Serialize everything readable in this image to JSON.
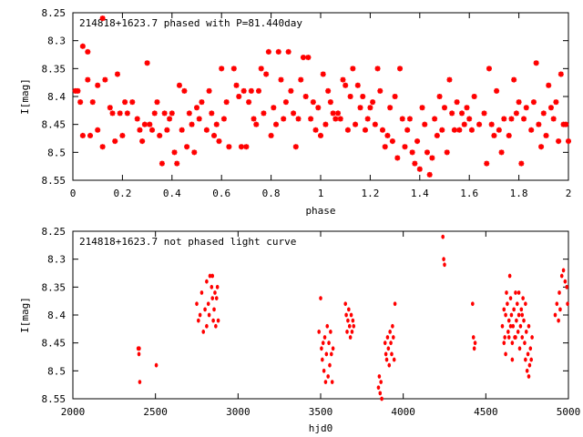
{
  "chart_data": [
    {
      "type": "scatter",
      "title": "214818+1623.7 phased with P=81.440day",
      "xlabel": "phase",
      "ylabel": "I[mag]",
      "xlim": [
        0,
        2
      ],
      "ylim": [
        8.25,
        8.55
      ],
      "y_inverted": true,
      "xticks": [
        0,
        0.2,
        0.4,
        0.6,
        0.8,
        1,
        1.2,
        1.4,
        1.6,
        1.8,
        2
      ],
      "xtick_labels": [
        "0",
        "0.2",
        "0.4",
        "0.6",
        "0.8",
        "1",
        "1.2",
        "1.4",
        "1.6",
        "1.8",
        "2"
      ],
      "yticks": [
        8.25,
        8.3,
        8.35,
        8.4,
        8.45,
        8.5,
        8.55
      ],
      "ytick_labels": [
        "8.25",
        "8.3",
        "8.35",
        "8.4",
        "8.45",
        "8.5",
        "8.55"
      ],
      "marker_color": "#ff0000",
      "grid": false,
      "points": [
        [
          0.01,
          8.39
        ],
        [
          0.02,
          8.39
        ],
        [
          0.03,
          8.41
        ],
        [
          0.04,
          8.31
        ],
        [
          0.04,
          8.47
        ],
        [
          0.06,
          8.32
        ],
        [
          0.06,
          8.37
        ],
        [
          0.07,
          8.47
        ],
        [
          0.08,
          8.41
        ],
        [
          0.1,
          8.46
        ],
        [
          0.1,
          8.38
        ],
        [
          0.12,
          8.26
        ],
        [
          0.12,
          8.49
        ],
        [
          0.13,
          8.37
        ],
        [
          0.15,
          8.42
        ],
        [
          0.16,
          8.43
        ],
        [
          0.17,
          8.48
        ],
        [
          0.18,
          8.36
        ],
        [
          0.19,
          8.43
        ],
        [
          0.2,
          8.47
        ],
        [
          0.21,
          8.41
        ],
        [
          0.22,
          8.43
        ],
        [
          0.24,
          8.41
        ],
        [
          0.26,
          8.44
        ],
        [
          0.27,
          8.46
        ],
        [
          0.28,
          8.48
        ],
        [
          0.29,
          8.45
        ],
        [
          0.3,
          8.34
        ],
        [
          0.31,
          8.45
        ],
        [
          0.32,
          8.46
        ],
        [
          0.33,
          8.43
        ],
        [
          0.34,
          8.41
        ],
        [
          0.35,
          8.47
        ],
        [
          0.36,
          8.52
        ],
        [
          0.37,
          8.43
        ],
        [
          0.38,
          8.46
        ],
        [
          0.39,
          8.44
        ],
        [
          0.4,
          8.43
        ],
        [
          0.41,
          8.5
        ],
        [
          0.42,
          8.52
        ],
        [
          0.43,
          8.38
        ],
        [
          0.44,
          8.46
        ],
        [
          0.45,
          8.39
        ],
        [
          0.46,
          8.49
        ],
        [
          0.47,
          8.43
        ],
        [
          0.48,
          8.45
        ],
        [
          0.49,
          8.5
        ],
        [
          0.5,
          8.42
        ],
        [
          0.51,
          8.44
        ],
        [
          0.52,
          8.41
        ],
        [
          0.54,
          8.46
        ],
        [
          0.55,
          8.39
        ],
        [
          0.56,
          8.43
        ],
        [
          0.57,
          8.47
        ],
        [
          0.58,
          8.45
        ],
        [
          0.59,
          8.48
        ],
        [
          0.6,
          8.35
        ],
        [
          0.61,
          8.44
        ],
        [
          0.62,
          8.41
        ],
        [
          0.63,
          8.49
        ],
        [
          0.65,
          8.35
        ],
        [
          0.66,
          8.38
        ],
        [
          0.67,
          8.4
        ],
        [
          0.68,
          8.49
        ],
        [
          0.69,
          8.39
        ],
        [
          0.7,
          8.49
        ],
        [
          0.71,
          8.41
        ],
        [
          0.72,
          8.39
        ],
        [
          0.73,
          8.44
        ],
        [
          0.74,
          8.45
        ],
        [
          0.75,
          8.39
        ],
        [
          0.76,
          8.35
        ],
        [
          0.77,
          8.43
        ],
        [
          0.78,
          8.36
        ],
        [
          0.79,
          8.32
        ],
        [
          0.8,
          8.47
        ],
        [
          0.81,
          8.42
        ],
        [
          0.82,
          8.45
        ],
        [
          0.83,
          8.32
        ],
        [
          0.84,
          8.37
        ],
        [
          0.85,
          8.44
        ],
        [
          0.86,
          8.41
        ],
        [
          0.87,
          8.32
        ],
        [
          0.88,
          8.39
        ],
        [
          0.89,
          8.43
        ],
        [
          0.9,
          8.49
        ],
        [
          0.91,
          8.44
        ],
        [
          0.92,
          8.37
        ],
        [
          0.93,
          8.33
        ],
        [
          0.94,
          8.4
        ],
        [
          0.95,
          8.33
        ],
        [
          0.96,
          8.44
        ],
        [
          0.97,
          8.41
        ],
        [
          0.98,
          8.46
        ],
        [
          0.99,
          8.42
        ],
        [
          1.0,
          8.47
        ],
        [
          1.01,
          8.36
        ],
        [
          1.02,
          8.45
        ],
        [
          1.03,
          8.39
        ],
        [
          1.04,
          8.41
        ],
        [
          1.05,
          8.43
        ],
        [
          1.06,
          8.44
        ],
        [
          1.07,
          8.43
        ],
        [
          1.08,
          8.44
        ],
        [
          1.09,
          8.37
        ],
        [
          1.1,
          8.38
        ],
        [
          1.11,
          8.46
        ],
        [
          1.12,
          8.4
        ],
        [
          1.13,
          8.35
        ],
        [
          1.14,
          8.45
        ],
        [
          1.15,
          8.38
        ],
        [
          1.16,
          8.42
        ],
        [
          1.17,
          8.4
        ],
        [
          1.18,
          8.46
        ],
        [
          1.19,
          8.44
        ],
        [
          1.2,
          8.42
        ],
        [
          1.21,
          8.41
        ],
        [
          1.22,
          8.45
        ],
        [
          1.23,
          8.35
        ],
        [
          1.24,
          8.39
        ],
        [
          1.25,
          8.46
        ],
        [
          1.26,
          8.49
        ],
        [
          1.27,
          8.47
        ],
        [
          1.28,
          8.42
        ],
        [
          1.29,
          8.48
        ],
        [
          1.3,
          8.4
        ],
        [
          1.31,
          8.51
        ],
        [
          1.32,
          8.35
        ],
        [
          1.33,
          8.44
        ],
        [
          1.34,
          8.49
        ],
        [
          1.35,
          8.46
        ],
        [
          1.36,
          8.44
        ],
        [
          1.37,
          8.5
        ],
        [
          1.38,
          8.52
        ],
        [
          1.39,
          8.48
        ],
        [
          1.4,
          8.53
        ],
        [
          1.41,
          8.42
        ],
        [
          1.42,
          8.45
        ],
        [
          1.43,
          8.5
        ],
        [
          1.44,
          8.54
        ],
        [
          1.45,
          8.51
        ],
        [
          1.46,
          8.44
        ],
        [
          1.47,
          8.47
        ],
        [
          1.48,
          8.4
        ],
        [
          1.49,
          8.46
        ],
        [
          1.5,
          8.42
        ],
        [
          1.51,
          8.5
        ],
        [
          1.52,
          8.37
        ],
        [
          1.53,
          8.43
        ],
        [
          1.54,
          8.46
        ],
        [
          1.55,
          8.41
        ],
        [
          1.56,
          8.46
        ],
        [
          1.57,
          8.43
        ],
        [
          1.58,
          8.45
        ],
        [
          1.59,
          8.42
        ],
        [
          1.6,
          8.44
        ],
        [
          1.61,
          8.46
        ],
        [
          1.62,
          8.4
        ],
        [
          1.64,
          8.45
        ],
        [
          1.66,
          8.43
        ],
        [
          1.67,
          8.52
        ],
        [
          1.68,
          8.35
        ],
        [
          1.69,
          8.45
        ],
        [
          1.7,
          8.47
        ],
        [
          1.71,
          8.39
        ],
        [
          1.72,
          8.46
        ],
        [
          1.73,
          8.5
        ],
        [
          1.74,
          8.44
        ],
        [
          1.76,
          8.47
        ],
        [
          1.77,
          8.44
        ],
        [
          1.78,
          8.37
        ],
        [
          1.79,
          8.43
        ],
        [
          1.8,
          8.41
        ],
        [
          1.81,
          8.52
        ],
        [
          1.82,
          8.44
        ],
        [
          1.83,
          8.42
        ],
        [
          1.85,
          8.46
        ],
        [
          1.86,
          8.41
        ],
        [
          1.87,
          8.34
        ],
        [
          1.88,
          8.45
        ],
        [
          1.89,
          8.49
        ],
        [
          1.9,
          8.43
        ],
        [
          1.91,
          8.47
        ],
        [
          1.92,
          8.38
        ],
        [
          1.93,
          8.42
        ],
        [
          1.94,
          8.44
        ],
        [
          1.95,
          8.41
        ],
        [
          1.96,
          8.48
        ],
        [
          1.97,
          8.36
        ],
        [
          1.98,
          8.45
        ],
        [
          1.99,
          8.45
        ],
        [
          2.0,
          8.48
        ]
      ]
    },
    {
      "type": "scatter",
      "title": "214818+1623.7 not phased light curve",
      "xlabel": "hjd0",
      "ylabel": "I[mag]",
      "xlim": [
        2000,
        5000
      ],
      "ylim": [
        8.25,
        8.55
      ],
      "y_inverted": true,
      "xticks": [
        2000,
        2500,
        3000,
        3500,
        4000,
        4500,
        5000
      ],
      "xtick_labels": [
        "2000",
        "2500",
        "3000",
        "3500",
        "4000",
        "4500",
        "5000"
      ],
      "yticks": [
        8.25,
        8.3,
        8.35,
        8.4,
        8.45,
        8.5,
        8.55
      ],
      "ytick_labels": [
        "8.25",
        "8.3",
        "8.35",
        "8.4",
        "8.45",
        "8.5",
        "8.55"
      ],
      "marker_color": "#ff0000",
      "grid": false,
      "points": [
        [
          2395,
          8.46
        ],
        [
          2400,
          8.47
        ],
        [
          2402,
          8.46
        ],
        [
          2405,
          8.52
        ],
        [
          2505,
          8.49
        ],
        [
          2750,
          8.38
        ],
        [
          2760,
          8.41
        ],
        [
          2770,
          8.4
        ],
        [
          2780,
          8.36
        ],
        [
          2790,
          8.43
        ],
        [
          2800,
          8.39
        ],
        [
          2810,
          8.42
        ],
        [
          2820,
          8.38
        ],
        [
          2825,
          8.4
        ],
        [
          2830,
          8.33
        ],
        [
          2840,
          8.35
        ],
        [
          2845,
          8.37
        ],
        [
          2850,
          8.41
        ],
        [
          2855,
          8.39
        ],
        [
          2860,
          8.36
        ],
        [
          2865,
          8.42
        ],
        [
          2870,
          8.37
        ],
        [
          2875,
          8.35
        ],
        [
          2880,
          8.41
        ],
        [
          2845,
          8.33
        ],
        [
          2810,
          8.34
        ],
        [
          3490,
          8.43
        ],
        [
          3500,
          8.37
        ],
        [
          3505,
          8.46
        ],
        [
          3510,
          8.48
        ],
        [
          3515,
          8.45
        ],
        [
          3520,
          8.5
        ],
        [
          3525,
          8.44
        ],
        [
          3530,
          8.52
        ],
        [
          3535,
          8.47
        ],
        [
          3540,
          8.42
        ],
        [
          3545,
          8.51
        ],
        [
          3550,
          8.45
        ],
        [
          3555,
          8.49
        ],
        [
          3560,
          8.43
        ],
        [
          3565,
          8.47
        ],
        [
          3570,
          8.52
        ],
        [
          3575,
          8.46
        ],
        [
          3650,
          8.38
        ],
        [
          3655,
          8.4
        ],
        [
          3660,
          8.43
        ],
        [
          3665,
          8.41
        ],
        [
          3670,
          8.39
        ],
        [
          3675,
          8.42
        ],
        [
          3680,
          8.44
        ],
        [
          3685,
          8.4
        ],
        [
          3690,
          8.43
        ],
        [
          3695,
          8.41
        ],
        [
          3700,
          8.42
        ],
        [
          3850,
          8.53
        ],
        [
          3855,
          8.51
        ],
        [
          3860,
          8.54
        ],
        [
          3865,
          8.52
        ],
        [
          3870,
          8.55
        ],
        [
          3890,
          8.45
        ],
        [
          3895,
          8.47
        ],
        [
          3900,
          8.48
        ],
        [
          3905,
          8.44
        ],
        [
          3910,
          8.46
        ],
        [
          3915,
          8.49
        ],
        [
          3920,
          8.43
        ],
        [
          3925,
          8.45
        ],
        [
          3930,
          8.47
        ],
        [
          3935,
          8.42
        ],
        [
          3940,
          8.44
        ],
        [
          3950,
          8.38
        ],
        [
          3945,
          8.48
        ],
        [
          4240,
          8.26
        ],
        [
          4245,
          8.3
        ],
        [
          4250,
          8.31
        ],
        [
          4420,
          8.38
        ],
        [
          4425,
          8.44
        ],
        [
          4430,
          8.46
        ],
        [
          4435,
          8.45
        ],
        [
          4600,
          8.42
        ],
        [
          4610,
          8.39
        ],
        [
          4615,
          8.44
        ],
        [
          4620,
          8.4
        ],
        [
          4625,
          8.36
        ],
        [
          4630,
          8.38
        ],
        [
          4635,
          8.43
        ],
        [
          4640,
          8.41
        ],
        [
          4645,
          8.33
        ],
        [
          4650,
          8.37
        ],
        [
          4655,
          8.4
        ],
        [
          4660,
          8.45
        ],
        [
          4665,
          8.42
        ],
        [
          4670,
          8.39
        ],
        [
          4675,
          8.44
        ],
        [
          4680,
          8.36
        ],
        [
          4685,
          8.41
        ],
        [
          4690,
          8.38
        ],
        [
          4695,
          8.43
        ],
        [
          4700,
          8.4
        ],
        [
          4705,
          8.46
        ],
        [
          4710,
          8.42
        ],
        [
          4715,
          8.39
        ],
        [
          4720,
          8.44
        ],
        [
          4725,
          8.37
        ],
        [
          4730,
          8.41
        ],
        [
          4735,
          8.45
        ],
        [
          4740,
          8.48
        ],
        [
          4745,
          8.43
        ],
        [
          4750,
          8.5
        ],
        [
          4755,
          8.47
        ],
        [
          4760,
          8.51
        ],
        [
          4765,
          8.49
        ],
        [
          4770,
          8.46
        ],
        [
          4775,
          8.48
        ],
        [
          4780,
          8.44
        ],
        [
          4660,
          8.48
        ],
        [
          4640,
          8.44
        ],
        [
          4620,
          8.47
        ],
        [
          4700,
          8.36
        ],
        [
          4680,
          8.44
        ],
        [
          4720,
          8.4
        ],
        [
          4760,
          8.42
        ],
        [
          4740,
          8.38
        ],
        [
          4650,
          8.42
        ],
        [
          4610,
          8.45
        ],
        [
          4920,
          8.4
        ],
        [
          4930,
          8.38
        ],
        [
          4940,
          8.41
        ],
        [
          4950,
          8.39
        ],
        [
          4960,
          8.33
        ],
        [
          4970,
          8.32
        ],
        [
          4980,
          8.34
        ],
        [
          4990,
          8.35
        ],
        [
          4995,
          8.38
        ],
        [
          4945,
          8.36
        ]
      ]
    }
  ]
}
